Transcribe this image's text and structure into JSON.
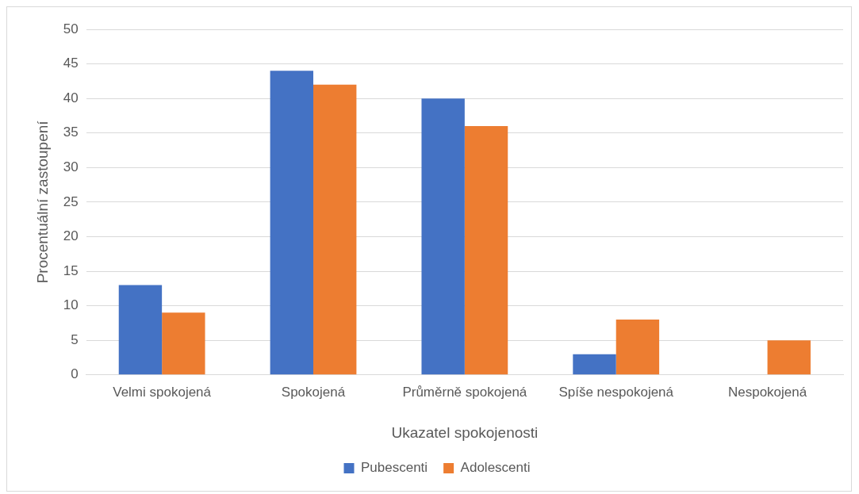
{
  "chart_data": {
    "type": "bar",
    "xlabel": "Ukazatel spokojenosti",
    "ylabel": "Procentuální zastoupení",
    "categories": [
      "Velmi spokojená",
      "Spokojená",
      "Průměrně spokojená",
      "Spíše nespokojená",
      "Nespokojená"
    ],
    "series": [
      {
        "name": "Pubescenti",
        "color": "#4472c4",
        "values": [
          13,
          44,
          40,
          3,
          0
        ]
      },
      {
        "name": "Adolescenti",
        "color": "#ed7d31",
        "values": [
          9,
          42,
          36,
          8,
          5
        ]
      }
    ],
    "ylim": [
      0,
      50
    ],
    "yticks": [
      0,
      5,
      10,
      15,
      20,
      25,
      30,
      35,
      40,
      45,
      50
    ],
    "grid": "y",
    "legend": "bottom"
  }
}
